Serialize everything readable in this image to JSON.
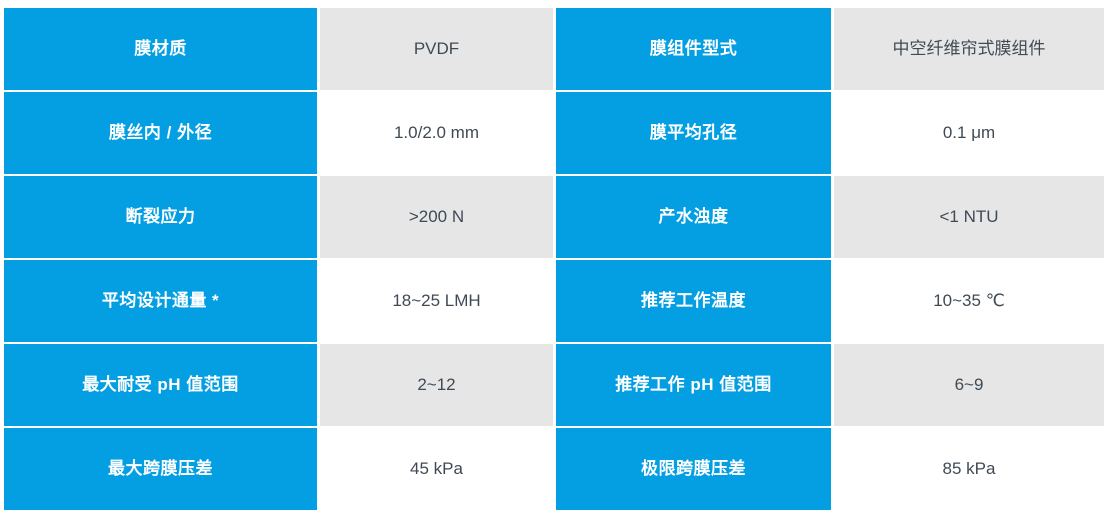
{
  "table": {
    "colors": {
      "label_bg": "#049fe2",
      "label_text": "#ffffff",
      "value_text": "#3f4a54",
      "value_bg_shaded": "#e6e6e6",
      "value_bg_plain": "#ffffff"
    },
    "rows": [
      {
        "label_left": "膜材质",
        "value_left": "PVDF",
        "label_right": "膜组件型式",
        "value_right": "中空纤维帘式膜组件"
      },
      {
        "label_left": "膜丝内 / 外径",
        "value_left": "1.0/2.0 mm",
        "label_right": "膜平均孔径",
        "value_right": "0.1 μm"
      },
      {
        "label_left": "断裂应力",
        "value_left": ">200 N",
        "label_right": "产水浊度",
        "value_right": "<1 NTU"
      },
      {
        "label_left": "平均设计通量 *",
        "value_left": "18~25 LMH",
        "label_right": "推荐工作温度",
        "value_right": "10~35 ℃"
      },
      {
        "label_left": "最大耐受 pH 值范围",
        "value_left": "2~12",
        "label_right": "推荐工作 pH 值范围",
        "value_right": "6~9"
      },
      {
        "label_left": "最大跨膜压差",
        "value_left": "45 kPa",
        "label_right": "极限跨膜压差",
        "value_right": "85 kPa"
      }
    ]
  }
}
